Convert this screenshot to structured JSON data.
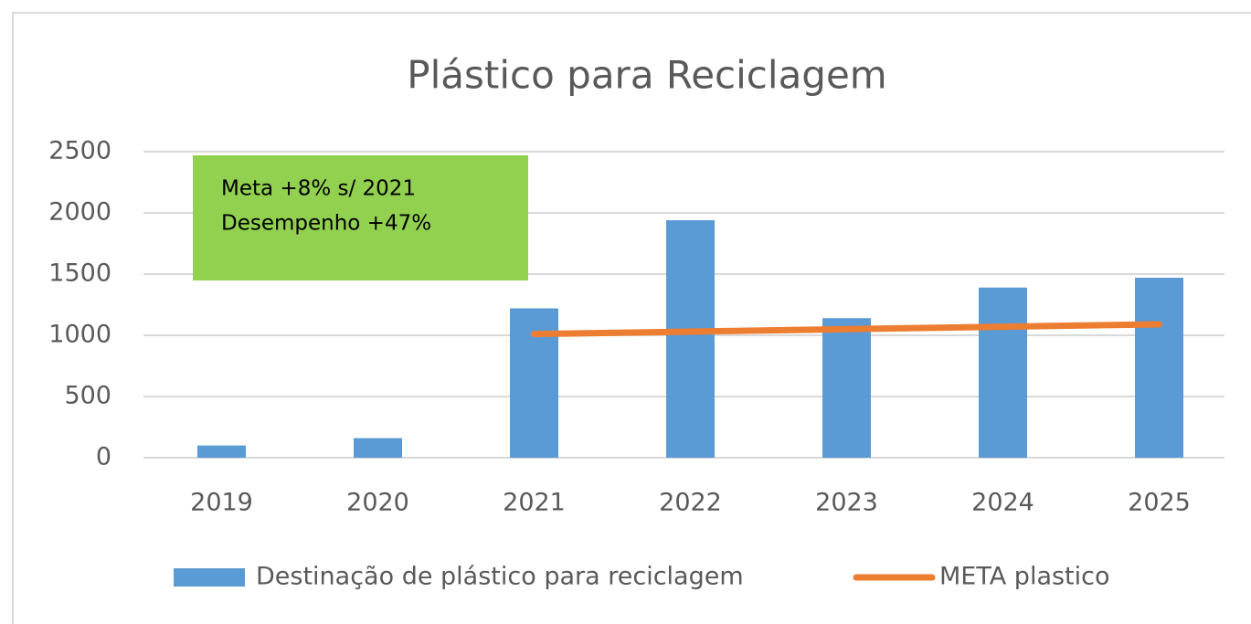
{
  "chart_data": {
    "type": "bar",
    "title": "Plástico para Reciclagem",
    "categories": [
      "2019",
      "2020",
      "2021",
      "2022",
      "2023",
      "2024",
      "2025"
    ],
    "series": [
      {
        "name": "Destinação de plástico para reciclagem",
        "type": "bar",
        "color": "#5b9bd5",
        "values": [
          100,
          160,
          1220,
          1940,
          1140,
          1390,
          1470
        ]
      },
      {
        "name": "META plastico",
        "type": "line",
        "color": "#ed7d31",
        "values": [
          null,
          null,
          1010,
          1030,
          1050,
          1070,
          1090
        ]
      }
    ],
    "ylim": [
      0,
      2500
    ],
    "yticks": [
      0,
      500,
      1000,
      1500,
      2000,
      2500
    ],
    "grid": true,
    "annotation": [
      "Meta +8% s/ 2021",
      "Desempenho +47%"
    ],
    "legend": "bottom"
  }
}
